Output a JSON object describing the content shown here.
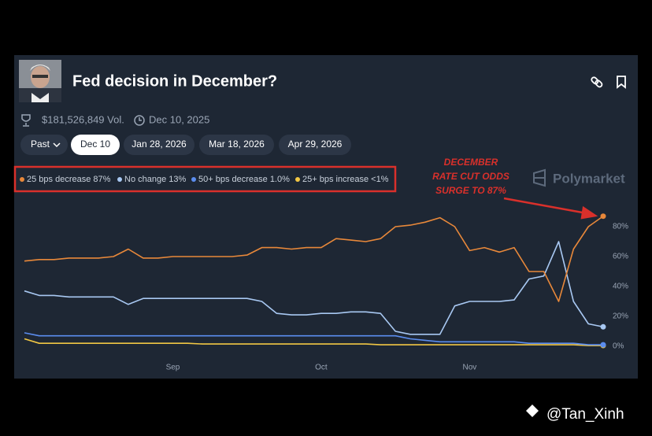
{
  "header": {
    "title": "Fed decision in December?",
    "volume": "$181,526,849 Vol.",
    "end_date": "Dec 10, 2025"
  },
  "controls": {
    "filter": "Past",
    "dates": [
      "Dec 10",
      "Jan 28, 2026",
      "Mar 18, 2026",
      "Apr 29, 2026"
    ]
  },
  "brand": "Polymarket",
  "watermark": "@Tan_Xinh",
  "chart_data": {
    "type": "line",
    "annotation": [
      "DECEMBER",
      "RATE CUT ODDS",
      "SURGE TO 87%"
    ],
    "categories": [
      null,
      null,
      null,
      null,
      null,
      null,
      null,
      null,
      null,
      null,
      "Sep",
      null,
      null,
      null,
      null,
      null,
      null,
      null,
      null,
      null,
      "Oct",
      null,
      null,
      null,
      null,
      null,
      null,
      null,
      null,
      null,
      "Nov",
      null,
      null,
      null,
      null,
      null,
      null,
      null,
      null,
      null
    ],
    "series": [
      {
        "name": "25 bps decrease 87%",
        "color": "#e8883a",
        "values": [
          57,
          58,
          58,
          59,
          59,
          59,
          60,
          65,
          59,
          59,
          60,
          60,
          60,
          60,
          60,
          61,
          66,
          66,
          65,
          66,
          66,
          72,
          71,
          70,
          72,
          80,
          81,
          83,
          86,
          80,
          64,
          66,
          63,
          66,
          50,
          50,
          30,
          65,
          80,
          87
        ]
      },
      {
        "name": "No change 13%",
        "color": "#a8c8f2",
        "values": [
          37,
          34,
          34,
          33,
          33,
          33,
          33,
          28,
          32,
          32,
          32,
          32,
          32,
          32,
          32,
          32,
          30,
          22,
          21,
          21,
          22,
          22,
          23,
          23,
          22,
          10,
          8,
          8,
          8,
          27,
          30,
          30,
          30,
          31,
          45,
          47,
          70,
          30,
          15,
          13
        ]
      },
      {
        "name": "50+ bps decrease 1.0%",
        "color": "#5b8def",
        "values": [
          9,
          7,
          7,
          7,
          7,
          7,
          7,
          7,
          7,
          7,
          7,
          7,
          7,
          7,
          7,
          7,
          7,
          7,
          7,
          7,
          7,
          7,
          7,
          7,
          7,
          7,
          5,
          4,
          3,
          3,
          3,
          3,
          3,
          3,
          2,
          2,
          2,
          2,
          1,
          1
        ]
      },
      {
        "name": "25+ bps increase <1%",
        "color": "#f2c744",
        "values": [
          5,
          2,
          2,
          2,
          2,
          2,
          2,
          2,
          2,
          2,
          2,
          2,
          1.5,
          1.5,
          1.5,
          1.5,
          1.5,
          1.5,
          1.5,
          1.5,
          1.5,
          1.5,
          1.5,
          1.5,
          1,
          1,
          1,
          1,
          1,
          1,
          1,
          1,
          1,
          1,
          1,
          1,
          1,
          1,
          0.5,
          0.5
        ]
      }
    ],
    "ylim": [
      0,
      100
    ],
    "yticks": [
      {
        "value": 0,
        "label": "0%"
      },
      {
        "value": 20,
        "label": "20%"
      },
      {
        "value": 40,
        "label": "40%"
      },
      {
        "value": 60,
        "label": "60%"
      },
      {
        "value": 80,
        "label": "80%"
      }
    ],
    "grid": false
  }
}
